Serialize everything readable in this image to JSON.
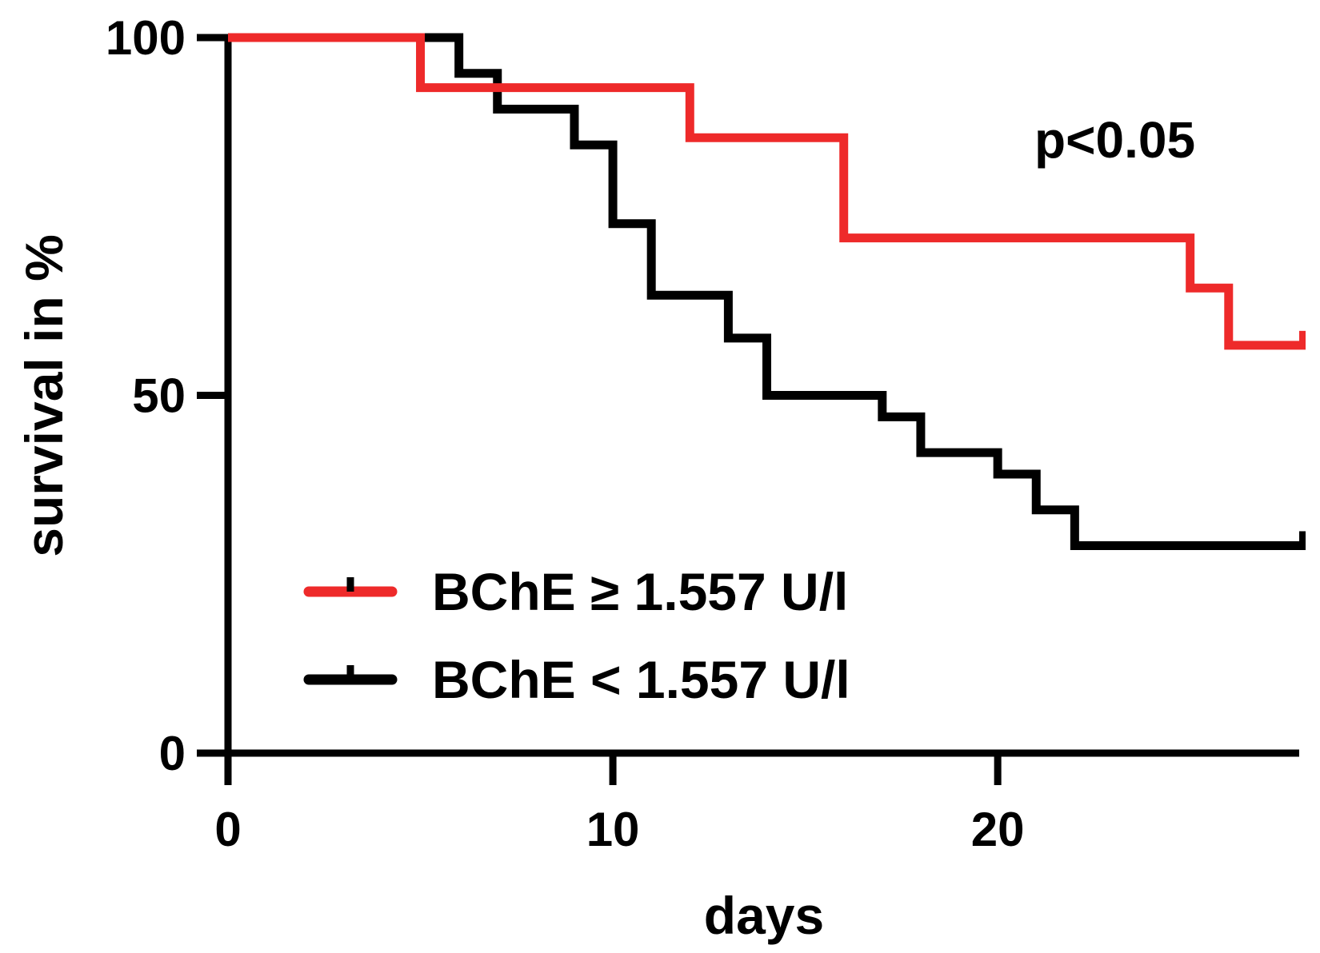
{
  "chart_data": {
    "type": "line",
    "subtype": "kaplan-meier step survival curve",
    "xlabel": "days",
    "ylabel": "survival in %",
    "xlim": [
      0,
      28
    ],
    "ylim": [
      0,
      100
    ],
    "xticks": [
      "0",
      "10",
      "20"
    ],
    "xtick_values": [
      0,
      10,
      20
    ],
    "yticks": [
      "0",
      "50",
      "100"
    ],
    "ytick_values": [
      0,
      50,
      100
    ],
    "grid": false,
    "legend_position": "bottom-left",
    "annotation": "p<0.05",
    "series": [
      {
        "name": "BChE ≥ 1.557 U/l",
        "color": "#ee2a2a",
        "x": [
          0,
          5,
          12,
          16,
          25,
          26,
          28
        ],
        "y": [
          100,
          93,
          86,
          72,
          65,
          57,
          57
        ],
        "censored_at": [
          28
        ]
      },
      {
        "name": "BChE < 1.557 U/l",
        "color": "#000000",
        "x": [
          0,
          6,
          7,
          9,
          10,
          11,
          13,
          14,
          17,
          18,
          20,
          21,
          22,
          28
        ],
        "y": [
          100,
          95,
          90,
          85,
          74,
          64,
          58,
          50,
          47,
          42,
          39,
          34,
          29,
          29
        ],
        "censored_at": [
          28
        ]
      }
    ]
  }
}
